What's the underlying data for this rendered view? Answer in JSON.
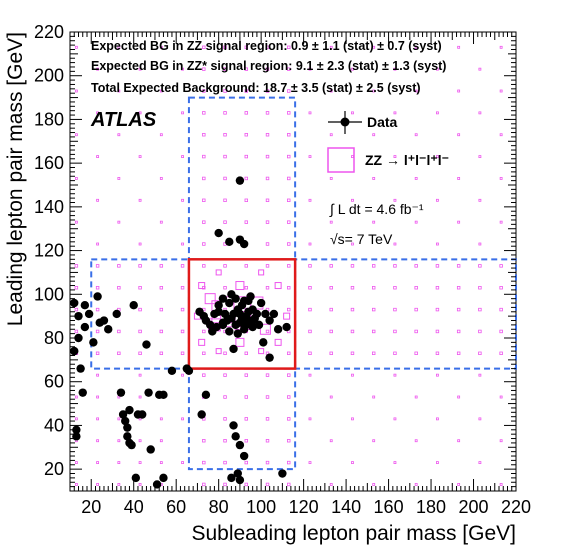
{
  "chart_data": {
    "type": "scatter",
    "xlabel": "Subleading lepton pair mass [GeV]",
    "ylabel": "Leading lepton pair mass [GeV]",
    "xlim": [
      10,
      220
    ],
    "ylim": [
      10,
      220
    ],
    "x_ticks": [
      "20",
      "40",
      "60",
      "80",
      "100",
      "120",
      "140",
      "160",
      "180",
      "200",
      "220"
    ],
    "y_ticks": [
      "20",
      "40",
      "60",
      "80",
      "100",
      "120",
      "140",
      "160",
      "180",
      "200",
      "220"
    ],
    "annotations": {
      "line1": "Expected BG in ZZ signal region: 0.9 ± 1.1 (stat) ± 0.7 (syst)",
      "line2": "Expected BG in ZZ* signal region: 9.1 ± 2.3 (stat) ± 1.3 (syst)",
      "line3": "Total Expected Background: 18.7 ± 3.5 (stat) ± 2.5 (syst)",
      "experiment": "ATLAS",
      "lumi": "∫ L dt = 4.6  fb⁻¹",
      "energy": "√s= 7 TeV"
    },
    "legend": {
      "data_label": "Data",
      "mc_label": "ZZ → l⁺l⁻l⁺l⁻",
      "placement": "top-right"
    },
    "colors": {
      "data": "#000000",
      "mc": "#ee55ee",
      "signal_region": "#e01a1a",
      "zzstar_region": "#3a6fe8"
    },
    "regions": {
      "zz_signal": {
        "x": [
          66,
          116
        ],
        "y": [
          66,
          116
        ]
      },
      "zzstar_vertical": {
        "x": [
          66,
          116
        ],
        "y": [
          20,
          190
        ]
      },
      "zzstar_horizontal": {
        "x": [
          20,
          220
        ],
        "y": [
          66,
          116
        ]
      }
    },
    "series": [
      {
        "name": "Data",
        "points": [
          [
            12,
            96
          ],
          [
            12,
            74
          ],
          [
            13,
            35
          ],
          [
            13,
            38
          ],
          [
            14,
            90
          ],
          [
            14,
            80
          ],
          [
            15,
            66
          ],
          [
            16,
            55
          ],
          [
            17,
            95
          ],
          [
            17,
            85
          ],
          [
            19,
            91
          ],
          [
            21,
            78
          ],
          [
            23,
            99
          ],
          [
            24,
            87
          ],
          [
            26,
            88
          ],
          [
            28,
            84
          ],
          [
            32,
            91
          ],
          [
            34,
            55
          ],
          [
            35,
            45
          ],
          [
            36,
            42
          ],
          [
            37,
            39
          ],
          [
            37,
            35
          ],
          [
            38,
            32
          ],
          [
            38,
            47
          ],
          [
            39,
            31
          ],
          [
            40,
            95
          ],
          [
            42,
            45
          ],
          [
            41,
            16
          ],
          [
            44,
            45
          ],
          [
            46,
            77
          ],
          [
            47,
            55
          ],
          [
            48,
            29
          ],
          [
            51,
            13
          ],
          [
            52,
            54
          ],
          [
            54,
            54
          ],
          [
            54,
            16
          ],
          [
            58,
            65
          ],
          [
            65,
            66
          ],
          [
            66,
            65
          ],
          [
            71,
            92
          ],
          [
            73,
            90
          ],
          [
            72,
            45
          ],
          [
            74,
            54
          ],
          [
            74,
            88
          ],
          [
            76,
            86
          ],
          [
            77,
            83
          ],
          [
            78,
            91
          ],
          [
            79,
            85
          ],
          [
            80,
            128
          ],
          [
            80,
            95
          ],
          [
            82,
            98
          ],
          [
            82,
            87
          ],
          [
            83,
            91
          ],
          [
            84,
            88
          ],
          [
            85,
            96
          ],
          [
            85,
            83
          ],
          [
            86,
            100
          ],
          [
            86,
            89
          ],
          [
            87,
            75
          ],
          [
            87,
            91
          ],
          [
            88,
            86
          ],
          [
            88,
            98
          ],
          [
            89,
            93
          ],
          [
            89,
            82
          ],
          [
            90,
            91
          ],
          [
            90,
            87
          ],
          [
            90,
            152
          ],
          [
            91,
            89
          ],
          [
            91,
            95
          ],
          [
            92,
            84
          ],
          [
            92,
            97
          ],
          [
            93,
            90
          ],
          [
            93,
            86
          ],
          [
            94,
            92
          ],
          [
            94,
            88
          ],
          [
            95,
            99
          ],
          [
            96,
            93
          ],
          [
            96,
            85
          ],
          [
            97,
            89
          ],
          [
            98,
            91
          ],
          [
            99,
            86
          ],
          [
            100,
            96
          ],
          [
            101,
            78
          ],
          [
            102,
            91
          ],
          [
            104,
            88
          ],
          [
            104,
            71
          ],
          [
            106,
            91
          ],
          [
            108,
            84
          ],
          [
            112,
            85
          ],
          [
            90,
            125
          ],
          [
            92,
            123
          ],
          [
            88,
            35
          ],
          [
            87,
            40
          ],
          [
            90,
            31
          ],
          [
            92,
            26
          ],
          [
            86,
            16
          ],
          [
            90,
            15
          ],
          [
            89,
            18
          ],
          [
            85,
            124
          ],
          [
            110,
            18
          ],
          [
            82,
            86
          ],
          [
            80,
            92
          ],
          [
            94,
            97
          ],
          [
            96,
            88
          ]
        ]
      }
    ]
  }
}
